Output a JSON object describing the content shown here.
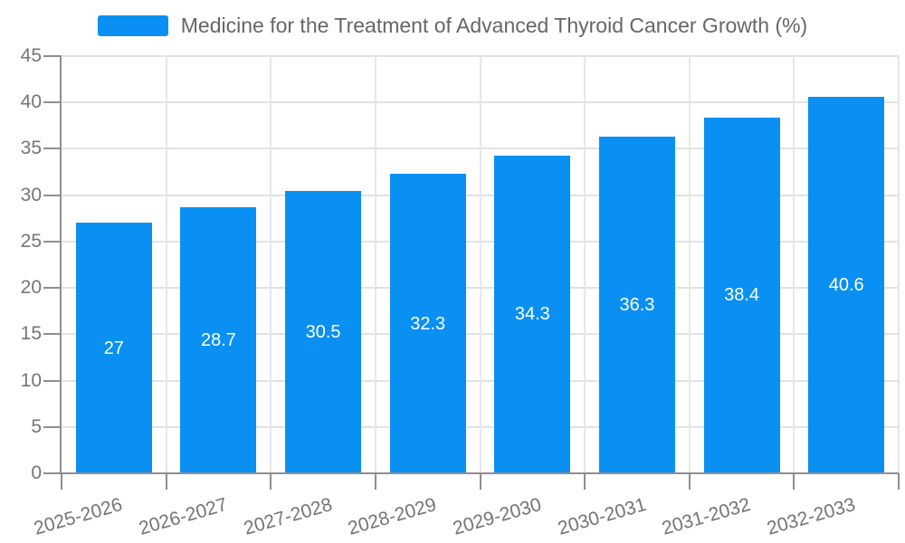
{
  "legend": {
    "label": "Medicine for the Treatment of Advanced Thyroid Cancer Growth (%)"
  },
  "colors": {
    "bar": "#0990f2",
    "bar_label": "#ffffff",
    "axis": "#8f8f8f",
    "hgrid": "#e2e2e2",
    "vgrid": "#e7e7e7",
    "axis_label": "#757575",
    "legend_text": "#666666",
    "background": "#ffffff"
  },
  "chart_data": {
    "type": "bar",
    "title": "Medicine for the Treatment of Advanced Thyroid Cancer Growth (%)",
    "categories": [
      "2025-2026",
      "2026-2027",
      "2027-2028",
      "2028-2029",
      "2029-2030",
      "2030-2031",
      "2031-2032",
      "2032-2033"
    ],
    "values": [
      27,
      28.7,
      30.5,
      32.3,
      34.3,
      36.3,
      38.4,
      40.6
    ],
    "value_labels": [
      "27",
      "28.7",
      "30.5",
      "32.3",
      "34.3",
      "36.3",
      "38.4",
      "40.6"
    ],
    "xlabel": "",
    "ylabel": "",
    "ylim": [
      0,
      45
    ],
    "yticks": [
      0,
      5,
      10,
      15,
      20,
      25,
      30,
      35,
      40,
      45
    ],
    "grid": true,
    "legend_position": "top-center",
    "bar_label_position": "inside-middle",
    "x_label_rotation_deg": -16
  }
}
